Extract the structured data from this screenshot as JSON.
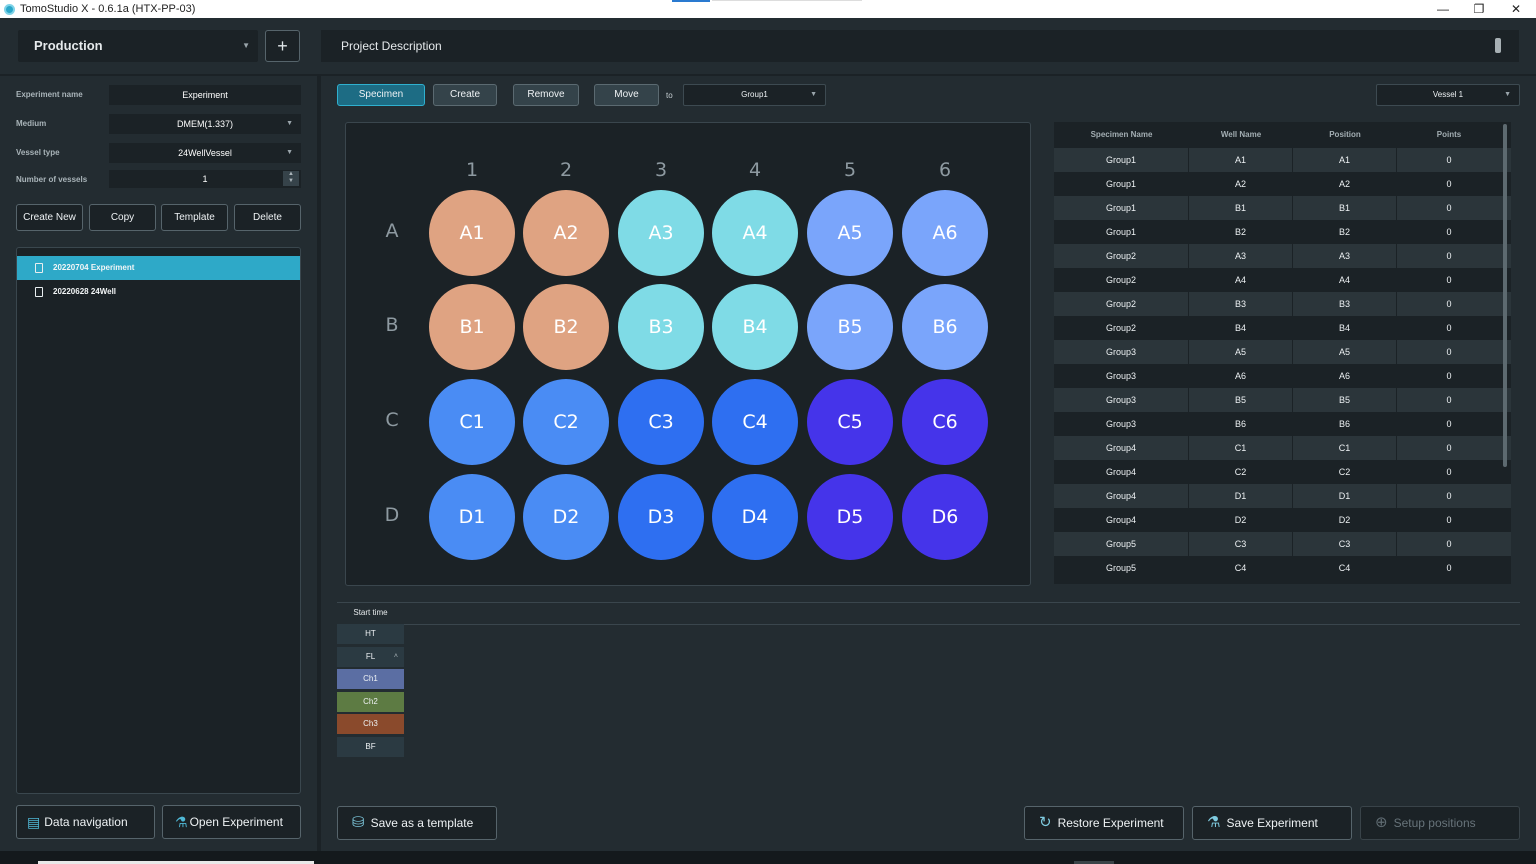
{
  "window": {
    "title": "TomoStudio X - 0.6.1a (HTX-PP-03)",
    "minimize": "—",
    "restore": "❐",
    "close": "✕"
  },
  "topbar": {
    "project": "Production",
    "add": "+",
    "project_description": "Project Description"
  },
  "experiment_form": {
    "name_label": "Experiment name",
    "name_value": "Experiment",
    "medium_label": "Medium",
    "medium_value": "DMEM(1.337)",
    "vessel_type_label": "Vessel type",
    "vessel_type_value": "24WellVessel",
    "num_vessels_label": "Number of vessels",
    "num_vessels_value": "1"
  },
  "experiment_buttons": {
    "create_new": "Create New",
    "copy": "Copy",
    "template": "Template",
    "delete": "Delete"
  },
  "experiments": [
    {
      "label": "20220704 Experiment",
      "selected": true
    },
    {
      "label": "20220628 24Well",
      "selected": false
    }
  ],
  "left_bottom": {
    "data_navigation": "Data navigation",
    "open_experiment": "Open Experiment"
  },
  "toolbar": {
    "specimen": "Specimen",
    "create": "Create",
    "remove": "Remove",
    "move": "Move",
    "to": "to",
    "group_select": "Group1",
    "vessel_select": "Vessel 1"
  },
  "plate": {
    "columns": [
      "1",
      "2",
      "3",
      "4",
      "5",
      "6"
    ],
    "rows": [
      "A",
      "B",
      "C",
      "D"
    ],
    "wells": [
      [
        "A1",
        "A2",
        "A3",
        "A4",
        "A5",
        "A6"
      ],
      [
        "B1",
        "B2",
        "B3",
        "B4",
        "B5",
        "B6"
      ],
      [
        "C1",
        "C2",
        "C3",
        "C4",
        "C5",
        "C6"
      ],
      [
        "D1",
        "D2",
        "D3",
        "D4",
        "D5",
        "D6"
      ]
    ],
    "colors": [
      [
        "#dfa382",
        "#dfa382",
        "#7fdbe6",
        "#7fdbe6",
        "#7aa5fb",
        "#7aa5fb"
      ],
      [
        "#dfa382",
        "#dfa382",
        "#7fdbe6",
        "#7fdbe6",
        "#7aa5fb",
        "#7aa5fb"
      ],
      [
        "#4a8cf4",
        "#4a8cf4",
        "#2e6ff1",
        "#2e6ff1",
        "#4534ea",
        "#4534ea"
      ],
      [
        "#4a8cf4",
        "#4a8cf4",
        "#2e6ff1",
        "#2e6ff1",
        "#4534ea",
        "#4534ea"
      ]
    ]
  },
  "table": {
    "headers": [
      "Specimen Name",
      "Well Name",
      "Position",
      "Points"
    ],
    "rows": [
      [
        "Group1",
        "A1",
        "A1",
        "0"
      ],
      [
        "Group1",
        "A2",
        "A2",
        "0"
      ],
      [
        "Group1",
        "B1",
        "B1",
        "0"
      ],
      [
        "Group1",
        "B2",
        "B2",
        "0"
      ],
      [
        "Group2",
        "A3",
        "A3",
        "0"
      ],
      [
        "Group2",
        "A4",
        "A4",
        "0"
      ],
      [
        "Group2",
        "B3",
        "B3",
        "0"
      ],
      [
        "Group2",
        "B4",
        "B4",
        "0"
      ],
      [
        "Group3",
        "A5",
        "A5",
        "0"
      ],
      [
        "Group3",
        "A6",
        "A6",
        "0"
      ],
      [
        "Group3",
        "B5",
        "B5",
        "0"
      ],
      [
        "Group3",
        "B6",
        "B6",
        "0"
      ],
      [
        "Group4",
        "C1",
        "C1",
        "0"
      ],
      [
        "Group4",
        "C2",
        "C2",
        "0"
      ],
      [
        "Group4",
        "D1",
        "D1",
        "0"
      ],
      [
        "Group4",
        "D2",
        "D2",
        "0"
      ],
      [
        "Group5",
        "C3",
        "C3",
        "0"
      ],
      [
        "Group5",
        "C4",
        "C4",
        "0"
      ]
    ]
  },
  "timeline": {
    "start_time": "Start time",
    "channels": [
      {
        "label": "HT",
        "color": "#2b3a42"
      },
      {
        "label": "FL",
        "color": "#2b3a42",
        "caret": "˄"
      },
      {
        "label": "Ch1",
        "color": "#5b6ea3"
      },
      {
        "label": "Ch2",
        "color": "#5d7b43"
      },
      {
        "label": "Ch3",
        "color": "#8a4a2c"
      },
      {
        "label": "BF",
        "color": "#2b3a42"
      }
    ]
  },
  "actions": {
    "save_template": "Save as a template",
    "restore_experiment": "Restore Experiment",
    "save_experiment": "Save Experiment",
    "setup_positions": "Setup positions"
  }
}
